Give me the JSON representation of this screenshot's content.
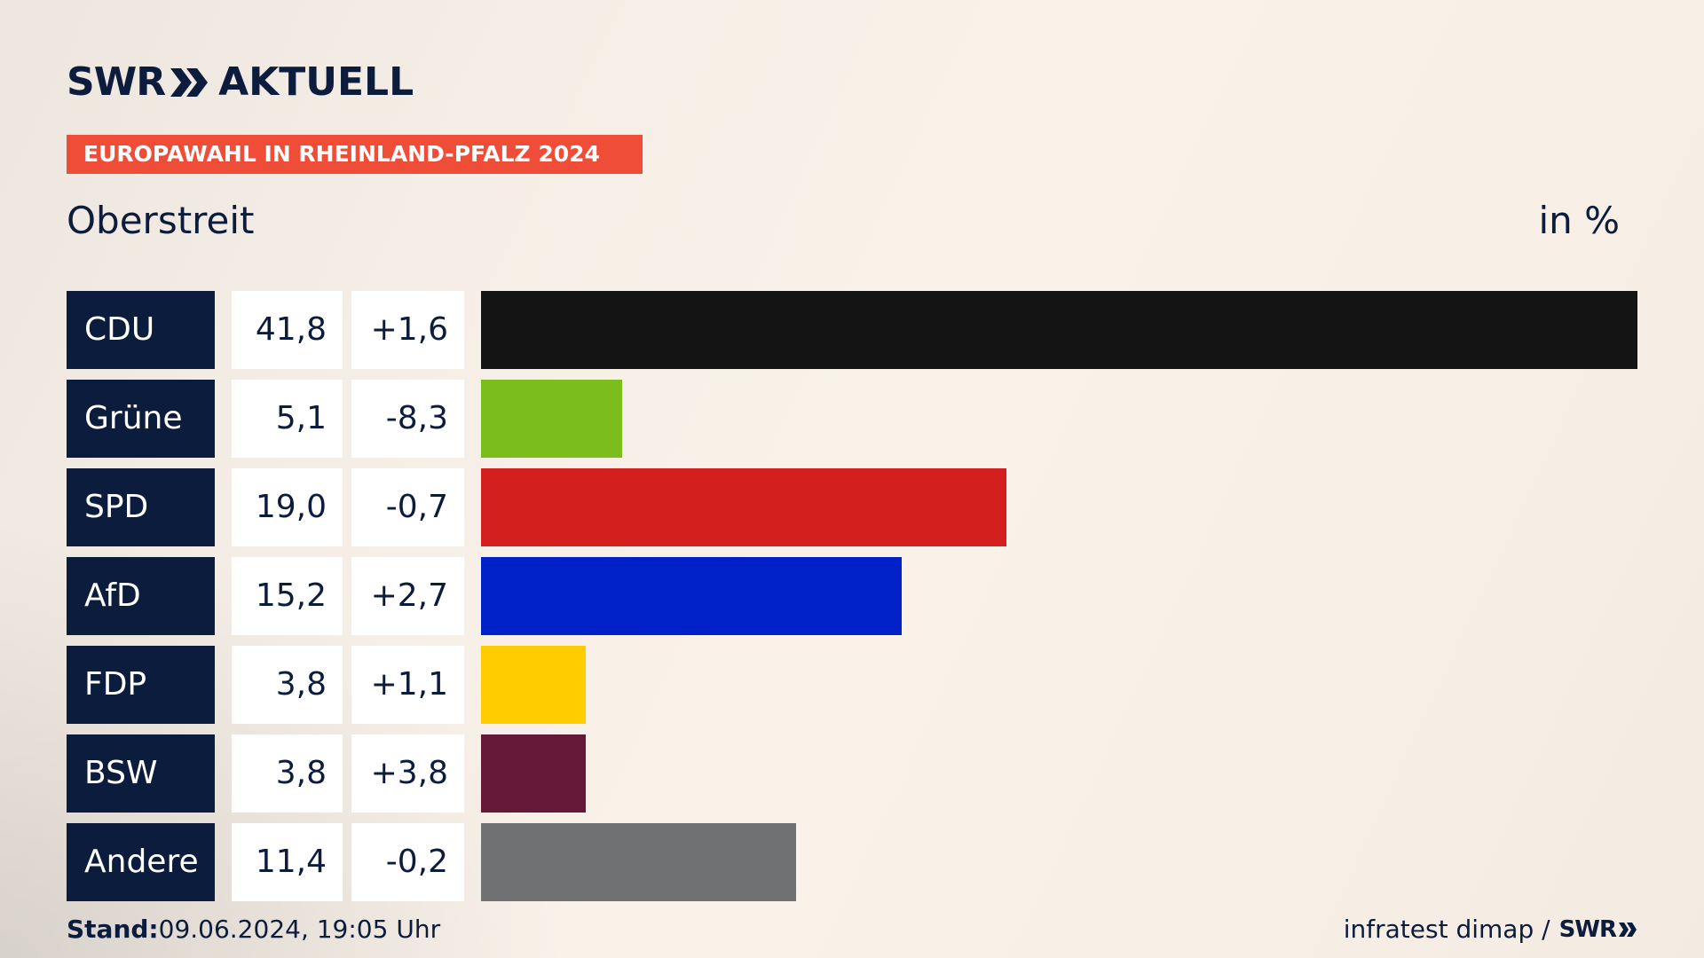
{
  "brand": {
    "swr": "SWR",
    "product": "AKTUELL"
  },
  "banner": "EUROPAWAHL IN RHEINLAND-PFALZ 2024",
  "place": "Oberstreit",
  "unit": "in %",
  "colors": {
    "navy": "#0c1c3c",
    "banner": "#f04d38"
  },
  "chart_data": {
    "type": "bar",
    "orientation": "horizontal",
    "categories": [
      "CDU",
      "Grüne",
      "SPD",
      "AfD",
      "FDP",
      "BSW",
      "Andere"
    ],
    "values": [
      41.8,
      5.1,
      19.0,
      15.2,
      3.8,
      3.8,
      11.4
    ],
    "value_labels": [
      "41,8",
      "5,1",
      "19,0",
      "15,2",
      "3,8",
      "3,8",
      "11,4"
    ],
    "diff_labels": [
      "+1,6",
      "-8,3",
      "-0,7",
      "+2,7",
      "+1,1",
      "+3,8",
      "-0,2"
    ],
    "bar_colors": [
      "#141414",
      "#7bbd1c",
      "#d41f1f",
      "#0021c7",
      "#ffcc00",
      "#661839",
      "#707173"
    ],
    "xlim": [
      0,
      41.8
    ],
    "grid": false,
    "legend": "none"
  },
  "footer": {
    "stand_label": "Stand:",
    "stand_value": "09.06.2024, 19:05 Uhr",
    "source": "infratest dimap /",
    "source_brand": "SWR"
  }
}
